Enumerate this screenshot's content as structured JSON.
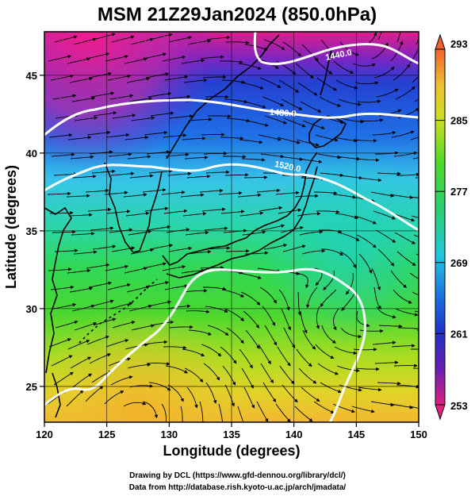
{
  "title": "MSM 21Z29Jan2024 (850.0hPa)",
  "xlabel": "Longitude (degrees)",
  "ylabel": "Latitude  (degrees)",
  "x_ticks": [
    "120",
    "125",
    "130",
    "135",
    "140",
    "145",
    "150"
  ],
  "y_ticks": [
    "25",
    "30",
    "35",
    "40",
    "45"
  ],
  "colorbar": {
    "ticks": [
      "293",
      "285",
      "277",
      "269",
      "261",
      "253"
    ],
    "min": 253,
    "max": 293,
    "colors": [
      "#e02080",
      "#6a1fb0",
      "#2030c8",
      "#1a8ae0",
      "#20d0e0",
      "#2ad070",
      "#7ad820",
      "#d8e020",
      "#f0b030",
      "#f06030"
    ]
  },
  "map": {
    "lon_range": [
      120,
      150
    ],
    "lat_range": [
      22.7,
      47.8
    ],
    "grid_lons": [
      125,
      130,
      135,
      140,
      145
    ],
    "grid_lats": [
      25,
      30,
      35,
      40,
      45
    ],
    "contour_labels": [
      "1440.0",
      "1480.0",
      "1520.0"
    ]
  },
  "credits": {
    "line1": "Drawing by DCL (https://www.gfd-dennou.org/library/dcl/)",
    "line2": "Data from http://database.rish.kyoto-u.ac.jp/arch/jmadata/"
  }
}
